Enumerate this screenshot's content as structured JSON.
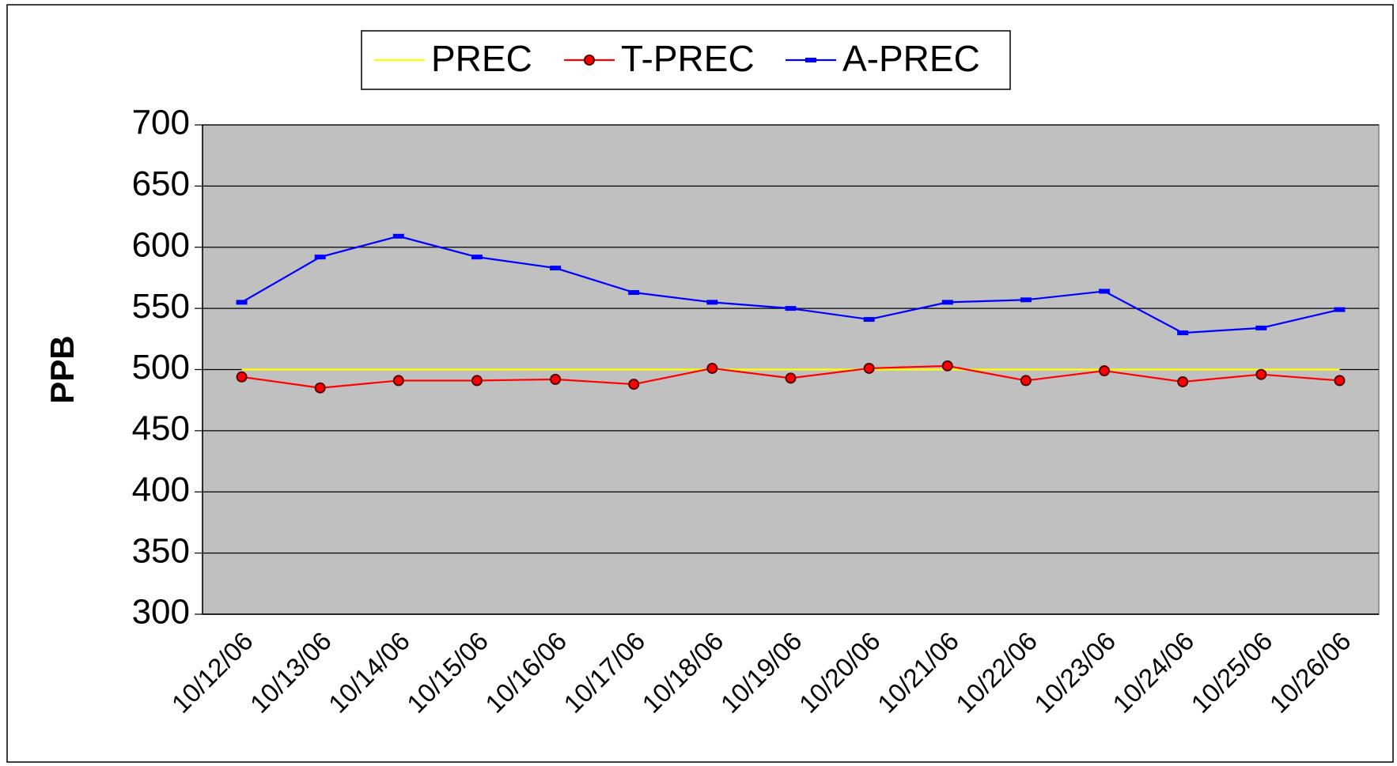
{
  "chart_data": {
    "type": "line",
    "y_label": "PPB",
    "categories": [
      "10/12/06",
      "10/13/06",
      "10/14/06",
      "10/15/06",
      "10/16/06",
      "10/17/06",
      "10/18/06",
      "10/19/06",
      "10/20/06",
      "10/21/06",
      "10/22/06",
      "10/23/06",
      "10/24/06",
      "10/25/06",
      "10/26/06"
    ],
    "series": [
      {
        "name": "PREC",
        "color": "#ffff00",
        "marker": "none",
        "values": [
          500,
          500,
          500,
          500,
          500,
          500,
          500,
          500,
          500,
          500,
          500,
          500,
          500,
          500,
          500
        ]
      },
      {
        "name": "T-PREC",
        "color": "#ff0000",
        "marker": "circle",
        "values": [
          494,
          485,
          491,
          491,
          492,
          488,
          501,
          493,
          501,
          503,
          491,
          499,
          490,
          496,
          491
        ]
      },
      {
        "name": "A-PREC",
        "color": "#0000ff",
        "marker": "dash",
        "values": [
          555,
          592,
          609,
          592,
          583,
          563,
          555,
          550,
          541,
          555,
          557,
          564,
          530,
          534,
          549
        ]
      }
    ],
    "ylim": [
      300,
      700
    ],
    "yticks": [
      300,
      350,
      400,
      450,
      500,
      550,
      600,
      650,
      700
    ],
    "grid": true,
    "plot_background": "#c0c0c0",
    "legend": "top"
  }
}
